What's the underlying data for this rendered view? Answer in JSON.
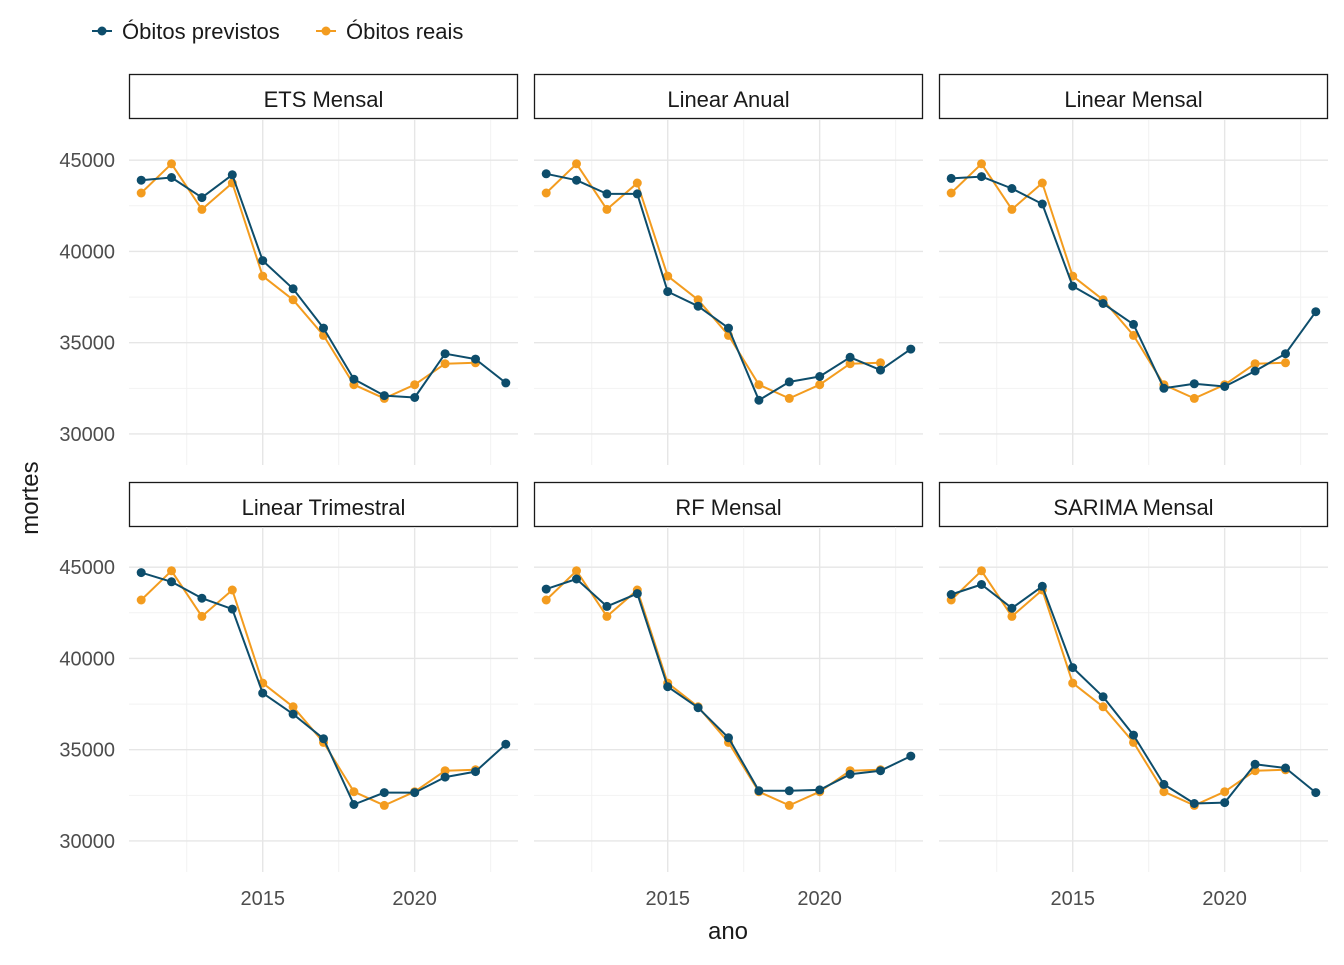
{
  "chart_data": {
    "type": "line",
    "title": "",
    "xlabel": "ano",
    "ylabel": "mortes",
    "x": [
      2011,
      2012,
      2013,
      2014,
      2015,
      2016,
      2017,
      2018,
      2019,
      2020,
      2021,
      2022,
      2023
    ],
    "xlim": [
      2010.6,
      2023.4
    ],
    "ylim": [
      28300,
      47200
    ],
    "x_ticks": [
      2015,
      2020
    ],
    "x_tick_labels": [
      "2015",
      "2020"
    ],
    "y_ticks": [
      30000,
      35000,
      40000,
      45000
    ],
    "y_tick_labels": [
      "30000",
      "35000",
      "40000",
      "45000"
    ],
    "grid": true,
    "legend_position": "top-left",
    "colors": {
      "previstos": "#0d4d6b",
      "reais": "#f39c1f"
    },
    "legend": [
      {
        "key": "previstos",
        "label": "Óbitos previstos"
      },
      {
        "key": "reais",
        "label": "Óbitos reais"
      }
    ],
    "panels": [
      {
        "title": "ETS Mensal",
        "series": [
          {
            "key": "previstos",
            "name": "Óbitos previstos",
            "values": [
              43900,
              44050,
              42950,
              44200,
              39500,
              37950,
              35800,
              33000,
              32100,
              32000,
              34400,
              34100,
              32800
            ]
          },
          {
            "key": "reais",
            "name": "Óbitos reais",
            "values": [
              43200,
              44800,
              42300,
              43750,
              38650,
              37350,
              35400,
              32700,
              31950,
              32700,
              33850,
              33900,
              null
            ]
          }
        ]
      },
      {
        "title": "Linear Anual",
        "series": [
          {
            "key": "previstos",
            "name": "Óbitos previstos",
            "values": [
              44250,
              43900,
              43150,
              43150,
              37800,
              37000,
              35800,
              31850,
              32850,
              33150,
              34200,
              33500,
              34650
            ]
          },
          {
            "key": "reais",
            "name": "Óbitos reais",
            "values": [
              43200,
              44800,
              42300,
              43750,
              38650,
              37350,
              35400,
              32700,
              31950,
              32700,
              33850,
              33900,
              null
            ]
          }
        ]
      },
      {
        "title": "Linear Mensal",
        "series": [
          {
            "key": "previstos",
            "name": "Óbitos previstos",
            "values": [
              44000,
              44100,
              43450,
              42600,
              38100,
              37150,
              36000,
              32500,
              32750,
              32600,
              33450,
              34400,
              36700
            ]
          },
          {
            "key": "reais",
            "name": "Óbitos reais",
            "values": [
              43200,
              44800,
              42300,
              43750,
              38650,
              37350,
              35400,
              32700,
              31950,
              32700,
              33850,
              33900,
              null
            ]
          }
        ]
      },
      {
        "title": "Linear Trimestral",
        "series": [
          {
            "key": "previstos",
            "name": "Óbitos previstos",
            "values": [
              44700,
              44200,
              43300,
              42700,
              38100,
              36950,
              35600,
              32000,
              32650,
              32650,
              33500,
              33800,
              35300
            ]
          },
          {
            "key": "reais",
            "name": "Óbitos reais",
            "values": [
              43200,
              44800,
              42300,
              43750,
              38650,
              37350,
              35400,
              32700,
              31950,
              32700,
              33850,
              33900,
              null
            ]
          }
        ]
      },
      {
        "title": "RF Mensal",
        "series": [
          {
            "key": "previstos",
            "name": "Óbitos previstos",
            "values": [
              43800,
              44350,
              42850,
              43550,
              38450,
              37300,
              35650,
              32750,
              32750,
              32800,
              33650,
              33850,
              34650
            ]
          },
          {
            "key": "reais",
            "name": "Óbitos reais",
            "values": [
              43200,
              44800,
              42300,
              43750,
              38650,
              37350,
              35400,
              32700,
              31950,
              32700,
              33850,
              33900,
              null
            ]
          }
        ]
      },
      {
        "title": "SARIMA Mensal",
        "series": [
          {
            "key": "previstos",
            "name": "Óbitos previstos",
            "values": [
              43500,
              44050,
              42750,
              43950,
              39500,
              37900,
              35800,
              33100,
              32050,
              32100,
              34200,
              34000,
              32650
            ]
          },
          {
            "key": "reais",
            "name": "Óbitos reais",
            "values": [
              43200,
              44800,
              42300,
              43750,
              38650,
              37350,
              35400,
              32700,
              31950,
              32700,
              33850,
              33900,
              null
            ]
          }
        ]
      }
    ]
  }
}
